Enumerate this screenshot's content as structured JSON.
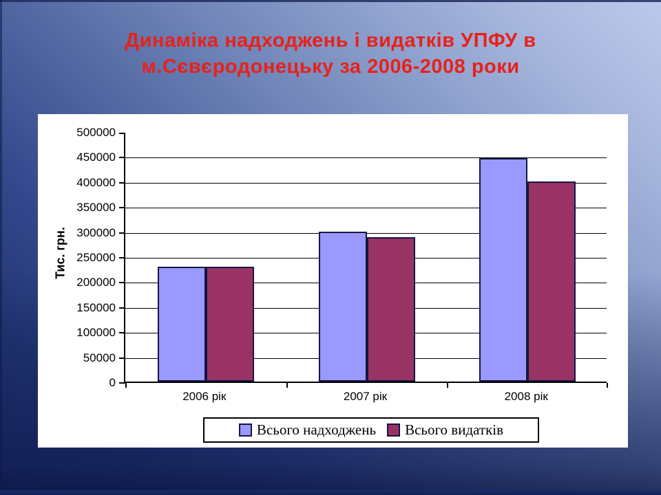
{
  "slide": {
    "title_line1": "Динаміка надходжень і видатків УПФУ в",
    "title_line2": "м.Сєвєродонецьку за 2006-2008 роки",
    "title_color": "#e8211b"
  },
  "chart_data": {
    "type": "bar",
    "title": "Динаміка надходжень і видатків УПФУ в м.Сєвєродонецьку за 2006-2008 роки",
    "categories": [
      "2006 рік",
      "2007 рік",
      "2008 рік"
    ],
    "series": [
      {
        "name": "Всього надходжень",
        "color": "#9999ff",
        "values": [
          230000,
          300000,
          446000
        ]
      },
      {
        "name": "Всього видатків",
        "color": "#993366",
        "values": [
          230000,
          288000,
          400000
        ]
      }
    ],
    "xlabel": "",
    "ylabel": "Тис. грн.",
    "ylim": [
      0,
      500000
    ],
    "ytick_step": 50000,
    "yticks": [
      0,
      50000,
      100000,
      150000,
      200000,
      250000,
      300000,
      350000,
      400000,
      450000,
      500000
    ],
    "grid": true,
    "legend_position": "bottom",
    "plot_background": "#ffffff"
  }
}
